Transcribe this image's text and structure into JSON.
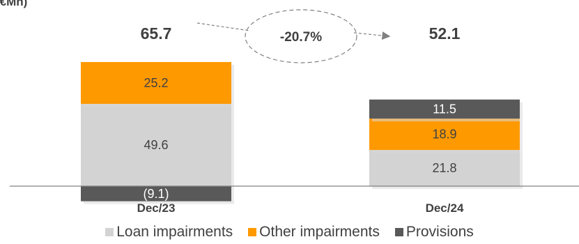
{
  "chart_data": {
    "type": "bar",
    "stacked": true,
    "unit_label": "(€Mn)",
    "categories": [
      "Dec/23",
      "Dec/24"
    ],
    "totals": [
      "65.7",
      "52.1"
    ],
    "series": [
      {
        "name": "Loan impairments",
        "color": "#d3d3d3",
        "values": [
          49.6,
          21.8
        ],
        "labels": [
          "49.6",
          "21.8"
        ]
      },
      {
        "name": "Other impairments",
        "color": "#ff9900",
        "values": [
          25.2,
          18.9
        ],
        "labels": [
          "25.2",
          "18.9"
        ]
      },
      {
        "name": "Provisions",
        "color": "#595959",
        "values": [
          -9.1,
          11.5
        ],
        "labels": [
          "(9.1)",
          "11.5"
        ]
      }
    ],
    "change_label": "-20.7%",
    "legend_position": "bottom",
    "grid": false
  }
}
